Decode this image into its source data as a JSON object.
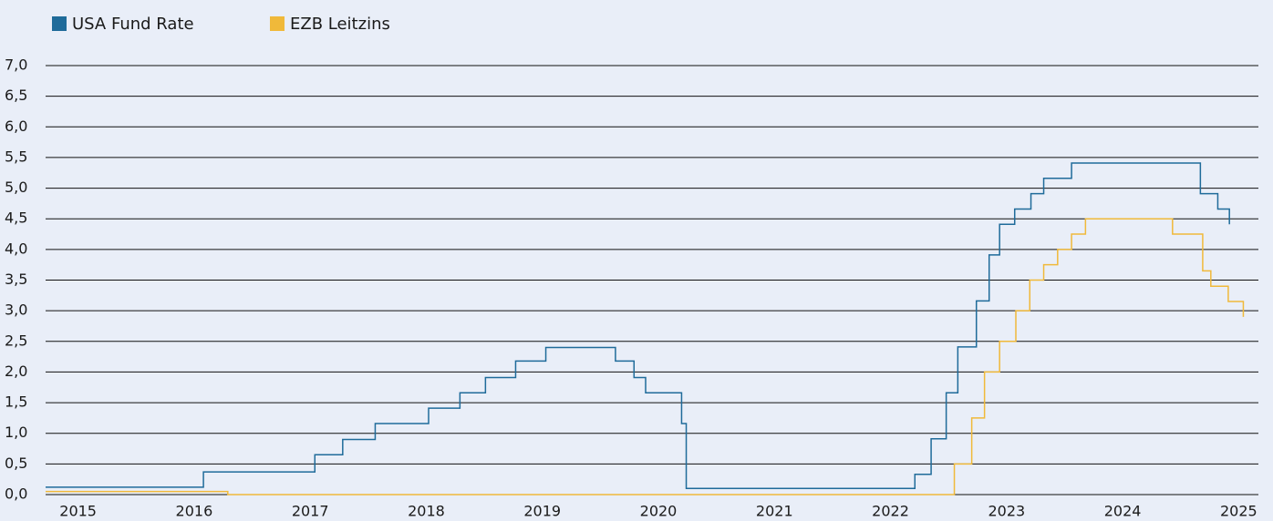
{
  "chart_data": {
    "type": "line",
    "step": "post",
    "series": [
      {
        "name": "USA Fund Rate",
        "color": "#1f6b9a",
        "x": [
          2014.72,
          2016.08,
          2017.04,
          2017.28,
          2017.56,
          2018.02,
          2018.29,
          2018.51,
          2018.77,
          2019.03,
          2019.63,
          2019.79,
          2019.89,
          2020.2,
          2020.24,
          2022.21,
          2022.35,
          2022.48,
          2022.58,
          2022.74,
          2022.85,
          2022.94,
          2023.07,
          2023.21,
          2023.32,
          2023.56,
          2024.67,
          2024.82,
          2024.92
        ],
        "values": [
          0.12,
          0.37,
          0.65,
          0.9,
          1.16,
          1.41,
          1.66,
          1.91,
          2.18,
          2.4,
          2.18,
          1.91,
          1.66,
          1.16,
          0.1,
          0.33,
          0.91,
          1.66,
          2.41,
          3.16,
          3.91,
          4.41,
          4.66,
          4.91,
          5.16,
          5.41,
          4.91,
          4.66,
          4.41
        ]
      },
      {
        "name": "EZB Leitzins",
        "color": "#f0b93a",
        "x": [
          2014.72,
          2016.29,
          2022.55,
          2022.7,
          2022.81,
          2022.94,
          2023.08,
          2023.2,
          2023.32,
          2023.44,
          2023.56,
          2023.68,
          2024.43,
          2024.69,
          2024.76,
          2024.91,
          2025.04
        ],
        "values": [
          0.05,
          0,
          0.5,
          1.25,
          2.0,
          2.5,
          3.0,
          3.5,
          3.75,
          4.0,
          4.25,
          4.5,
          4.25,
          3.65,
          3.4,
          3.15,
          2.9
        ]
      }
    ],
    "xlim": [
      2014.72,
      2025.17
    ],
    "xticks": [
      2015,
      2016,
      2017,
      2018,
      2019,
      2020,
      2021,
      2022,
      2023,
      2024,
      2025
    ],
    "ylim": [
      0,
      7
    ],
    "yticks": [
      {
        "value": 0,
        "label": "0,0"
      },
      {
        "value": 0.5,
        "label": "0,5"
      },
      {
        "value": 1,
        "label": "1,0"
      },
      {
        "value": 1.5,
        "label": "1,5"
      },
      {
        "value": 2,
        "label": "2,0"
      },
      {
        "value": 2.5,
        "label": "2,5"
      },
      {
        "value": 3,
        "label": "3,0"
      },
      {
        "value": 3.5,
        "label": "3,5"
      },
      {
        "value": 4,
        "label": "4,0"
      },
      {
        "value": 4.5,
        "label": "4,5"
      },
      {
        "value": 5,
        "label": "5,0"
      },
      {
        "value": 5.5,
        "label": "5,5"
      },
      {
        "value": 6,
        "label": "6,0"
      },
      {
        "value": 6.5,
        "label": "6,5"
      },
      {
        "value": 7,
        "label": "7,0"
      }
    ],
    "grid": true,
    "legend": "top-left"
  }
}
